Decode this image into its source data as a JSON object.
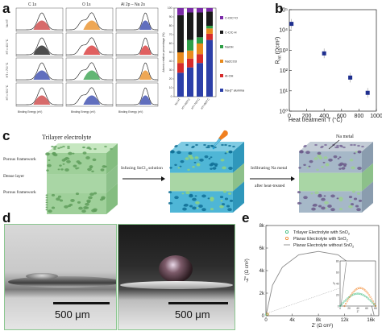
{
  "figure": {
    "panel_a": {
      "letter": "a",
      "xps": {
        "columns": [
          {
            "title": "C 1s",
            "xlabel": "Binding Energy (eV)",
            "ticks": [
              "291",
              "288",
              "285",
              "282"
            ],
            "legend": [
              "C-O/C=O",
              "C-C/C-H",
              "Na2CO3"
            ]
          },
          {
            "title": "O 1s",
            "xlabel": "Binding Energy (eV)",
            "ticks": [
              "537",
              "534",
              "531",
              "528"
            ],
            "legend": [
              "Na2CO3",
              "Al-OH",
              "NaOH",
              "Al-O"
            ]
          },
          {
            "title": "Al 2p – Na 2s",
            "xlabel": "Binding Energy (eV)",
            "ticks": [
              "78",
              "75",
              "72",
              "69",
              "66",
              "63"
            ],
            "legend": [
              "Naβ″-alumina",
              "Al-OH",
              "Na2CO3"
            ]
          }
        ],
        "row_labels": [
          "No HT",
          "HT = 400 °C",
          "HT = 700 °C",
          "HT = 900 °C"
        ],
        "ylabel": "Intensity (a.u.)"
      },
      "stacked_bar": {
        "ylabel": "Atomic relative percentage (%)",
        "yticks": [
          "0",
          "10",
          "20",
          "30",
          "40",
          "50",
          "60",
          "70",
          "80",
          "90",
          "100"
        ],
        "legend": [
          {
            "label": "C-O/C=O",
            "color": "#7b2aa8"
          },
          {
            "label": "C-C/C-H",
            "color": "#1a1a1a"
          },
          {
            "label": "NaOH",
            "color": "#2e9e46"
          },
          {
            "label": "Na2CO3",
            "color": "#e88a1c"
          },
          {
            "label": "Al-OH",
            "color": "#d62b2b"
          },
          {
            "label": "Na-β″ alumina",
            "color": "#2c3fa8"
          }
        ]
      }
    },
    "panel_b": {
      "letter": "b",
      "ylabel": "R",
      "ylabel_sub": "int",
      "ylabel_unit": " (Ωcm²)",
      "xlabel": "Heat treatment T (°C)",
      "yticks": [
        "10⁰",
        "10¹",
        "10²",
        "10³",
        "10⁴",
        "10⁵"
      ],
      "xticks": [
        "0",
        "200",
        "400",
        "600",
        "800",
        "1000"
      ]
    },
    "panel_c": {
      "letter": "c",
      "title": "Trilayer electrolyte",
      "layer_labels": [
        "Porous framework",
        "Dense layer",
        "Porous framework"
      ],
      "step1": "Infusing SnCl",
      "step1_sub": "4",
      "step1_tail": " solution",
      "step2_line1": "Infiltrating Na metal",
      "step2_line2": "after heat-treated",
      "na_label": "Na metal"
    },
    "panel_d": {
      "letter": "d",
      "scalebar_left": "500 μm",
      "scalebar_right": "500 μm"
    },
    "panel_e": {
      "letter": "e",
      "ylabel": "-Z″ (Ω cm²)",
      "xlabel": "Z′ (Ω cm²)",
      "yticks": [
        "0",
        "2k",
        "4k",
        "6k",
        "8k"
      ],
      "xticks": [
        "0",
        "4k",
        "8k",
        "12k",
        "16k"
      ],
      "legend": [
        {
          "label": "Trilayer Electrolyte with SnO",
          "sub": "2",
          "color": "#2bb673"
        },
        {
          "label": "Planar Electrolyte with SnO",
          "sub": "2",
          "color": "#f07f1f"
        },
        {
          "label": "Planar Electrolyte without SnO",
          "sub": "2",
          "color": "#888888"
        }
      ],
      "inset_yticks": [
        "0",
        "20",
        "40",
        "60",
        "80"
      ],
      "inset_xticks": [
        "0",
        "20",
        "40",
        "60",
        "80"
      ],
      "inset_ylabel": "-Z″",
      "inset_xlabel": "Z′"
    }
  },
  "chart_data": [
    {
      "type": "bar",
      "stacked": true,
      "categories": [
        "No HT",
        "HT=400°C",
        "HT=700°C",
        "HT=900°C"
      ],
      "series": [
        {
          "name": "Na-β″ alumina",
          "values": [
            27,
            33,
            38,
            64
          ]
        },
        {
          "name": "Al-OH",
          "values": [
            11,
            10,
            10,
            7
          ]
        },
        {
          "name": "Na2CO3",
          "values": [
            12,
            9,
            12,
            6
          ]
        },
        {
          "name": "NaOH",
          "values": [
            0,
            12,
            7,
            3
          ]
        },
        {
          "name": "C-C/C-H",
          "values": [
            42,
            31,
            28,
            16
          ]
        },
        {
          "name": "C-O/C=O",
          "values": [
            8,
            5,
            5,
            4
          ]
        }
      ],
      "ylim": [
        0,
        100
      ]
    },
    {
      "type": "scatter",
      "x": [
        25,
        400,
        700,
        900
      ],
      "y": [
        20000,
        700,
        45,
        8
      ],
      "xlim": [
        0,
        1000
      ],
      "ylim": [
        1,
        100000
      ],
      "yscale": "log",
      "xlabel": "Heat treatment T (°C)",
      "ylabel": "Rint (Ωcm²)"
    },
    {
      "type": "line",
      "series": [
        {
          "name": "Planar Electrolyte without SnO2",
          "x": [
            0,
            1000,
            2500,
            5000,
            8000,
            11000,
            13500,
            15500,
            16500
          ],
          "y": [
            0,
            2700,
            4300,
            5400,
            5700,
            5400,
            4300,
            2300,
            0
          ]
        },
        {
          "name": "Trilayer Electrolyte with SnO2",
          "x": [
            0,
            20,
            40,
            60,
            80
          ],
          "y": [
            0,
            20,
            22,
            10,
            0
          ]
        },
        {
          "name": "Planar Electrolyte with SnO2",
          "x": [
            0,
            30,
            60,
            90,
            115
          ],
          "y": [
            0,
            28,
            32,
            22,
            0
          ]
        }
      ],
      "xlim": [
        0,
        16000
      ],
      "ylim": [
        0,
        8000
      ],
      "xlabel": "Z′ (Ω cm²)",
      "ylabel": "-Z″ (Ω cm²)"
    }
  ]
}
